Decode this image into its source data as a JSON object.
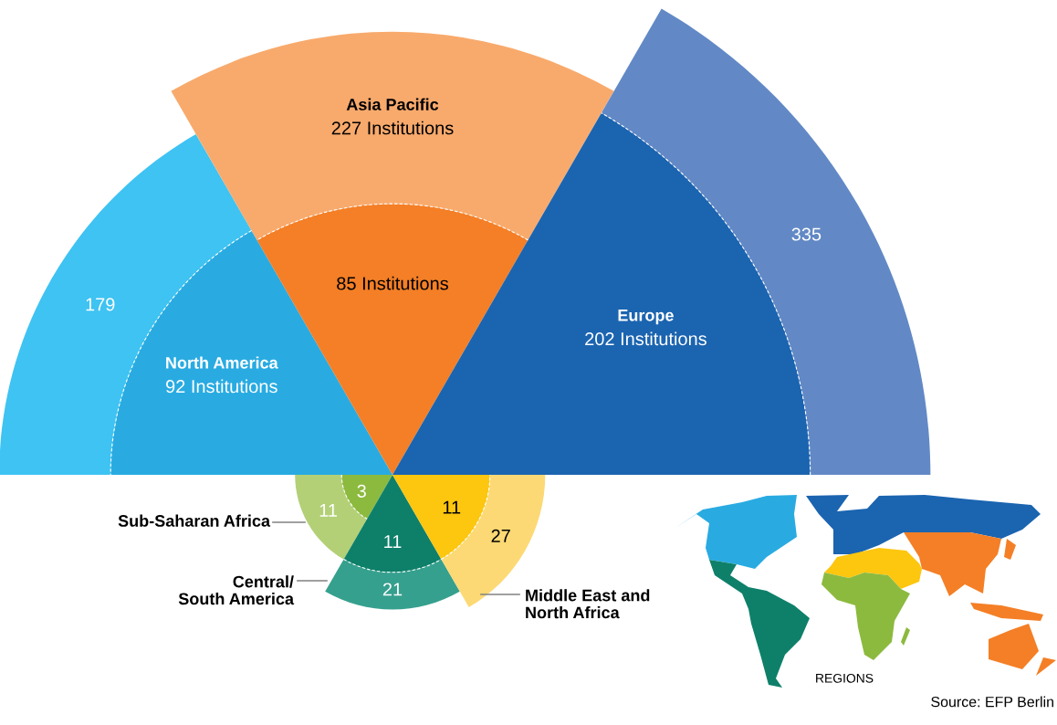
{
  "chart_data": {
    "type": "other",
    "categories": [
      "North America",
      "Asia Pacific",
      "Europe",
      "Sub-Saharan Africa",
      "Central/\nSouth America",
      "Middle East and\nNorth Africa"
    ],
    "series": [
      {
        "values": [
          92,
          85,
          202,
          3,
          11,
          11
        ],
        "colors": [
          "#29abe2",
          "#f47f26",
          "#1b64b0",
          "#8cba3e",
          "#0e806a",
          "#fdc60f"
        ],
        "value_labels": [
          "92 Institutions",
          "85 Institutions",
          "202 Institutions",
          "3",
          "11",
          "11"
        ]
      },
      {
        "values": [
          179,
          227,
          335,
          11,
          21,
          27
        ],
        "colors": [
          "#3ec3f2",
          "#f8aa6c",
          "#6289c6",
          "#b3d077",
          "#36a08e",
          "#fcd974"
        ],
        "value_labels": [
          "179",
          "227 Institutions",
          "335",
          "11",
          "21",
          "27"
        ]
      }
    ],
    "annotations": [
      "REGIONS",
      "Source: EFP Berlin"
    ]
  }
}
